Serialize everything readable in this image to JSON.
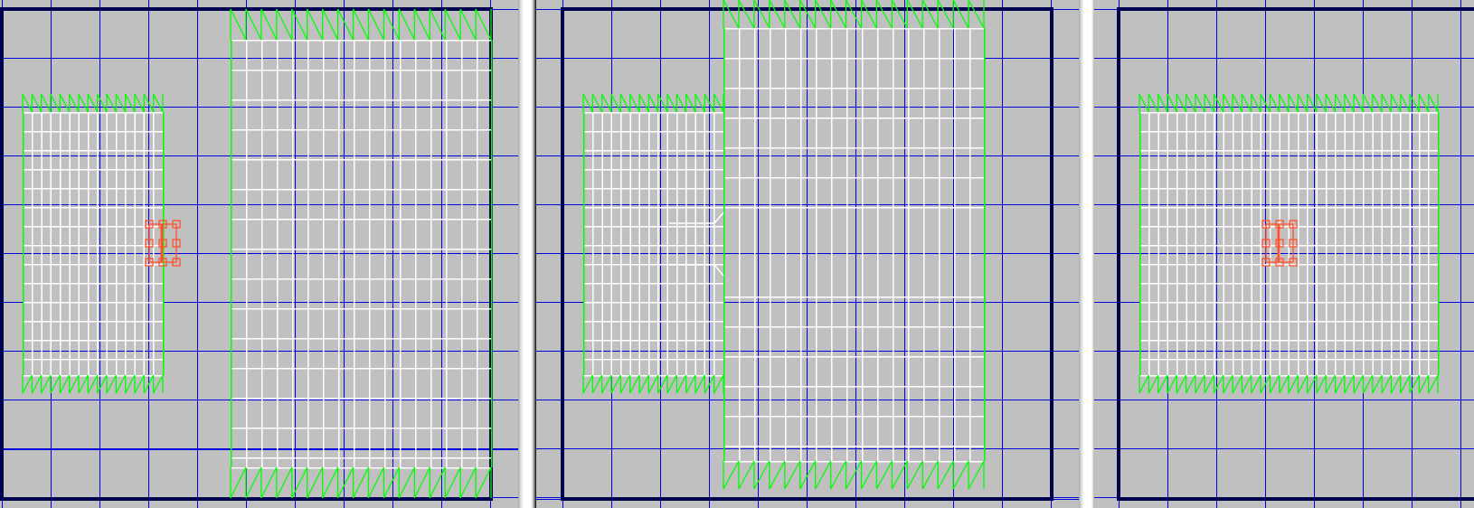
{
  "colors": {
    "background": "#c0c0c0",
    "grid": "#0000e0",
    "world_bounds": "#000050",
    "brush_outline": "#00ff00",
    "brush_edges": "#ffffff",
    "selection": "#ff5030"
  },
  "viewports": [
    {
      "id": "left",
      "has_selection": true
    },
    {
      "id": "middle",
      "has_selection": false
    },
    {
      "id": "right",
      "has_selection": true
    }
  ]
}
